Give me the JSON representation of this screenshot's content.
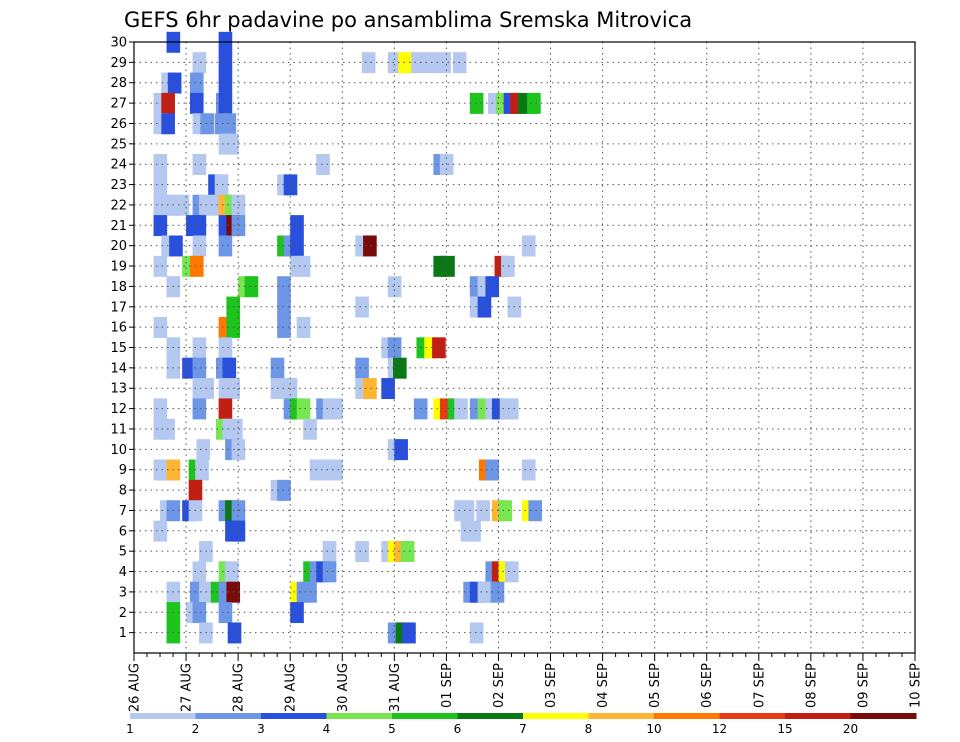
{
  "chart_data": {
    "type": "heatmap",
    "title": "GEFS 6hr padavine po ansamblima Sremska Mitrovica",
    "xlabel": "",
    "ylabel": "",
    "x_ticks": [
      "26 AUG",
      "27 AUG",
      "28 AUG",
      "29 AUG",
      "30 AUG",
      "31 AUG",
      "01 SEP",
      "02 SEP",
      "03 SEP",
      "04 SEP",
      "05 SEP",
      "06 SEP",
      "07 SEP",
      "08 SEP",
      "09 SEP",
      "10 SEP"
    ],
    "y_ticks": [
      1,
      2,
      3,
      4,
      5,
      6,
      7,
      8,
      9,
      10,
      11,
      12,
      13,
      14,
      15,
      16,
      17,
      18,
      19,
      20,
      21,
      22,
      23,
      24,
      25,
      26,
      27,
      28,
      29,
      30
    ],
    "xlim": [
      0,
      60
    ],
    "ylim": [
      0,
      30
    ],
    "grid": true,
    "colorbar": {
      "colors": [
        "#b4c8f0",
        "#6e96e6",
        "#2850dc",
        "#78e650",
        "#1ec31e",
        "#0a7814",
        "#ffff00",
        "#ffb432",
        "#ff7800",
        "#e63c14",
        "#c31e14",
        "#780a0a"
      ],
      "labels": [
        "1",
        "2",
        "3",
        "4",
        "5",
        "6",
        "7",
        "8",
        "10",
        "12",
        "15",
        "20"
      ]
    },
    "cells": [
      [
        3,
        30,
        3
      ],
      [
        7,
        30,
        3
      ],
      [
        5,
        29,
        1
      ],
      [
        7,
        29,
        3
      ],
      [
        18,
        29,
        1
      ],
      [
        20,
        29,
        1
      ],
      [
        20.8,
        29,
        7
      ],
      [
        21.8,
        29,
        1
      ],
      [
        22.8,
        29,
        1
      ],
      [
        23.8,
        29,
        1
      ],
      [
        25,
        29,
        1
      ],
      [
        2.6,
        28,
        1
      ],
      [
        3.1,
        28,
        3
      ],
      [
        4.8,
        28,
        2
      ],
      [
        7,
        28,
        3
      ],
      [
        2,
        27,
        1
      ],
      [
        2.6,
        27,
        11
      ],
      [
        4.8,
        27,
        3
      ],
      [
        6.8,
        27,
        2
      ],
      [
        7,
        27,
        3
      ],
      [
        26.3,
        27,
        5
      ],
      [
        27.7,
        27,
        1
      ],
      [
        28.3,
        27,
        4
      ],
      [
        28.9,
        27,
        3
      ],
      [
        29.4,
        27,
        11
      ],
      [
        30,
        27,
        6
      ],
      [
        30.7,
        27,
        5
      ],
      [
        2,
        26,
        1
      ],
      [
        2.6,
        26,
        3
      ],
      [
        5,
        26,
        1
      ],
      [
        5.6,
        26,
        2
      ],
      [
        6.7,
        26,
        2
      ],
      [
        7.3,
        26,
        2
      ],
      [
        7,
        25,
        1
      ],
      [
        7.5,
        25,
        1
      ],
      [
        2,
        24,
        1
      ],
      [
        5,
        24,
        1
      ],
      [
        14.5,
        24,
        1
      ],
      [
        23.5,
        24,
        2
      ],
      [
        24,
        24,
        1
      ],
      [
        2,
        23,
        1
      ],
      [
        6.2,
        23,
        3
      ],
      [
        6.7,
        23,
        1
      ],
      [
        11.5,
        23,
        1
      ],
      [
        12,
        23,
        3
      ],
      [
        2,
        22,
        1
      ],
      [
        2.6,
        22,
        1
      ],
      [
        3.1,
        22,
        1
      ],
      [
        3.7,
        22,
        1
      ],
      [
        5,
        22,
        2
      ],
      [
        5.5,
        22,
        1
      ],
      [
        6.5,
        22,
        1
      ],
      [
        7,
        22,
        8
      ],
      [
        7.5,
        22,
        4
      ],
      [
        8,
        22,
        1
      ],
      [
        2,
        21,
        3
      ],
      [
        4.5,
        21,
        3
      ],
      [
        5,
        21,
        3
      ],
      [
        7,
        21,
        3
      ],
      [
        7.6,
        21,
        12
      ],
      [
        8,
        21,
        2
      ],
      [
        12.5,
        21,
        3
      ],
      [
        2.6,
        20,
        1
      ],
      [
        3.2,
        20,
        3
      ],
      [
        5,
        20,
        1
      ],
      [
        7,
        20,
        2
      ],
      [
        11.5,
        20,
        5
      ],
      [
        12,
        20,
        2
      ],
      [
        12.5,
        20,
        3
      ],
      [
        17.5,
        20,
        1
      ],
      [
        18.1,
        20,
        12
      ],
      [
        30.3,
        20,
        1
      ],
      [
        2,
        19,
        1
      ],
      [
        4.2,
        19,
        4
      ],
      [
        4.8,
        19,
        9
      ],
      [
        12.5,
        19,
        1
      ],
      [
        13,
        19,
        1
      ],
      [
        23.5,
        19,
        6
      ],
      [
        24.1,
        19,
        6
      ],
      [
        28.2,
        19,
        11
      ],
      [
        28.7,
        19,
        1
      ],
      [
        3,
        18,
        1
      ],
      [
        8.5,
        18,
        4
      ],
      [
        9,
        18,
        5
      ],
      [
        11.5,
        18,
        2
      ],
      [
        20,
        18,
        1
      ],
      [
        26.3,
        18,
        2
      ],
      [
        26.9,
        18,
        1
      ],
      [
        27.5,
        18,
        3
      ],
      [
        7.6,
        17,
        5
      ],
      [
        11.5,
        17,
        2
      ],
      [
        17.5,
        17,
        1
      ],
      [
        26.3,
        17,
        1
      ],
      [
        26.9,
        17,
        3
      ],
      [
        29.2,
        17,
        1
      ],
      [
        2,
        16,
        1
      ],
      [
        7,
        16,
        9
      ],
      [
        7.6,
        16,
        5
      ],
      [
        11.5,
        16,
        2
      ],
      [
        13,
        16,
        1
      ],
      [
        3,
        15,
        1
      ],
      [
        5,
        15,
        1
      ],
      [
        7,
        15,
        1
      ],
      [
        19.5,
        15,
        1
      ],
      [
        20,
        15,
        2
      ],
      [
        22.2,
        15,
        5
      ],
      [
        22.8,
        15,
        7
      ],
      [
        23.4,
        15,
        11
      ],
      [
        3,
        14,
        1
      ],
      [
        4.2,
        14,
        3
      ],
      [
        5,
        14,
        2
      ],
      [
        6.8,
        14,
        2
      ],
      [
        7.3,
        14,
        3
      ],
      [
        11,
        14,
        2
      ],
      [
        17.5,
        14,
        2
      ],
      [
        20,
        14,
        1
      ],
      [
        20.4,
        14,
        6
      ],
      [
        5,
        13,
        1
      ],
      [
        5.6,
        13,
        1
      ],
      [
        7,
        13,
        1
      ],
      [
        7.6,
        13,
        1
      ],
      [
        11,
        13,
        1
      ],
      [
        11.6,
        13,
        1
      ],
      [
        12,
        13,
        1
      ],
      [
        17.5,
        13,
        1
      ],
      [
        18.1,
        13,
        8
      ],
      [
        19.5,
        13,
        3
      ],
      [
        2,
        12,
        1
      ],
      [
        5,
        12,
        2
      ],
      [
        7,
        12,
        11
      ],
      [
        12,
        12,
        2
      ],
      [
        12.5,
        12,
        5
      ],
      [
        13,
        12,
        4
      ],
      [
        14.5,
        12,
        2
      ],
      [
        15,
        12,
        1
      ],
      [
        15.5,
        12,
        1
      ],
      [
        22,
        12,
        2
      ],
      [
        23.5,
        12,
        7
      ],
      [
        24,
        12,
        10
      ],
      [
        24.6,
        12,
        5
      ],
      [
        25.1,
        12,
        1
      ],
      [
        26.3,
        12,
        2
      ],
      [
        26.9,
        12,
        4
      ],
      [
        27.5,
        12,
        1
      ],
      [
        28,
        12,
        3
      ],
      [
        28.6,
        12,
        1
      ],
      [
        29,
        12,
        1
      ],
      [
        2,
        11,
        1
      ],
      [
        2.6,
        11,
        1
      ],
      [
        6.8,
        11,
        4
      ],
      [
        7.3,
        11,
        1
      ],
      [
        7.8,
        11,
        1
      ],
      [
        13.5,
        11,
        1
      ],
      [
        5.3,
        10,
        1
      ],
      [
        7.5,
        10,
        2
      ],
      [
        8,
        10,
        1
      ],
      [
        20,
        10,
        1
      ],
      [
        20.5,
        10,
        3
      ],
      [
        2,
        9,
        1
      ],
      [
        3,
        9,
        8
      ],
      [
        4.7,
        9,
        5
      ],
      [
        5.2,
        9,
        1
      ],
      [
        14,
        9,
        1
      ],
      [
        14.5,
        9,
        1
      ],
      [
        15,
        9,
        1
      ],
      [
        15.5,
        9,
        1
      ],
      [
        27,
        9,
        9
      ],
      [
        27.5,
        9,
        2
      ],
      [
        30.3,
        9,
        1
      ],
      [
        4.7,
        8,
        11
      ],
      [
        11,
        8,
        1
      ],
      [
        11.5,
        8,
        2
      ],
      [
        2.5,
        7,
        1
      ],
      [
        3,
        7,
        2
      ],
      [
        4.2,
        7,
        3
      ],
      [
        4.7,
        7,
        1
      ],
      [
        7,
        7,
        2
      ],
      [
        7.5,
        7,
        6
      ],
      [
        8,
        7,
        2
      ],
      [
        25.1,
        7,
        1
      ],
      [
        25.6,
        7,
        1
      ],
      [
        26.8,
        7,
        1
      ],
      [
        28,
        7,
        8
      ],
      [
        28.5,
        7,
        4
      ],
      [
        30.3,
        7,
        7
      ],
      [
        30.8,
        7,
        2
      ],
      [
        2,
        6,
        1
      ],
      [
        7.5,
        6,
        3
      ],
      [
        8,
        6,
        3
      ],
      [
        25.6,
        6,
        1
      ],
      [
        26.1,
        6,
        1
      ],
      [
        5.5,
        5,
        1
      ],
      [
        15,
        5,
        1
      ],
      [
        17.5,
        5,
        1
      ],
      [
        19.5,
        5,
        1
      ],
      [
        20,
        5,
        7
      ],
      [
        20.5,
        5,
        8
      ],
      [
        21,
        5,
        4
      ],
      [
        5,
        4,
        1
      ],
      [
        7,
        4,
        4
      ],
      [
        7.5,
        4,
        1
      ],
      [
        13.5,
        4,
        5
      ],
      [
        14,
        4,
        2
      ],
      [
        14.5,
        4,
        3
      ],
      [
        15,
        4,
        2
      ],
      [
        27.5,
        4,
        2
      ],
      [
        28,
        4,
        11
      ],
      [
        28.5,
        4,
        7
      ],
      [
        29,
        4,
        1
      ],
      [
        3,
        3,
        1
      ],
      [
        4.8,
        3,
        2
      ],
      [
        5.5,
        3,
        1
      ],
      [
        6.4,
        3,
        5
      ],
      [
        7,
        3,
        2
      ],
      [
        7.6,
        3,
        12
      ],
      [
        12.5,
        3,
        7
      ],
      [
        13,
        3,
        2
      ],
      [
        13.5,
        3,
        2
      ],
      [
        25.8,
        3,
        2
      ],
      [
        26.3,
        3,
        3
      ],
      [
        26.9,
        3,
        1
      ],
      [
        27.3,
        3,
        1
      ],
      [
        27.9,
        3,
        2
      ],
      [
        3,
        2,
        5
      ],
      [
        4.5,
        2,
        1
      ],
      [
        5,
        2,
        2
      ],
      [
        7,
        2,
        2
      ],
      [
        12.5,
        2,
        3
      ],
      [
        3,
        1,
        5
      ],
      [
        5.5,
        1,
        1
      ],
      [
        7.7,
        1,
        3
      ],
      [
        20,
        1,
        2
      ],
      [
        20.6,
        1,
        6
      ],
      [
        21.1,
        1,
        3
      ],
      [
        26.3,
        1,
        1
      ]
    ]
  }
}
